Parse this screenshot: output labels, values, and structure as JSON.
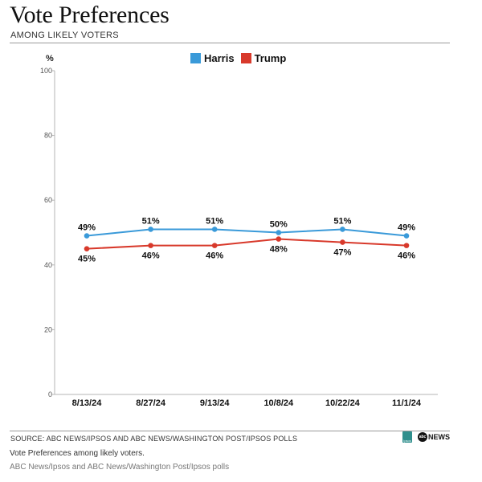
{
  "header": {
    "title": "Vote Preferences",
    "subtitle": "AMONG LIKELY VOTERS",
    "unit_label": "%"
  },
  "colors": {
    "harris": "#3a9ad9",
    "trump": "#d8392b",
    "axis": "#b5b5b5"
  },
  "chart_data": {
    "type": "line",
    "title": "Vote Preferences",
    "subtitle": "AMONG LIKELY VOTERS",
    "xlabel": "",
    "ylabel": "%",
    "ylim": [
      0,
      100
    ],
    "yticks": [
      0,
      20,
      40,
      60,
      80,
      100
    ],
    "categories": [
      "8/13/24",
      "8/27/24",
      "9/13/24",
      "10/8/24",
      "10/22/24",
      "11/1/24"
    ],
    "series": [
      {
        "name": "Harris",
        "color": "#3a9ad9",
        "values": [
          49,
          51,
          51,
          50,
          51,
          49
        ],
        "labels": [
          "49%",
          "51%",
          "51%",
          "50%",
          "51%",
          "49%"
        ],
        "label_position": "above"
      },
      {
        "name": "Trump",
        "color": "#d8392b",
        "values": [
          45,
          46,
          46,
          48,
          47,
          46
        ],
        "labels": [
          "45%",
          "46%",
          "46%",
          "48%",
          "47%",
          "46%"
        ],
        "label_position": "below"
      }
    ],
    "legend": "top-center",
    "grid": false
  },
  "footer": {
    "source": "SOURCE: ABC NEWS/IPSOS AND ABC NEWS/WASHINGTON POST/IPSOS POLLS",
    "logo_ipsos": "Ipsos",
    "logo_abc": "abc",
    "logo_news": "NEWS",
    "caption": "Vote Preferences among likely voters.",
    "credit": "ABC News/Ipsos and ABC News/Washington Post/Ipsos polls"
  }
}
